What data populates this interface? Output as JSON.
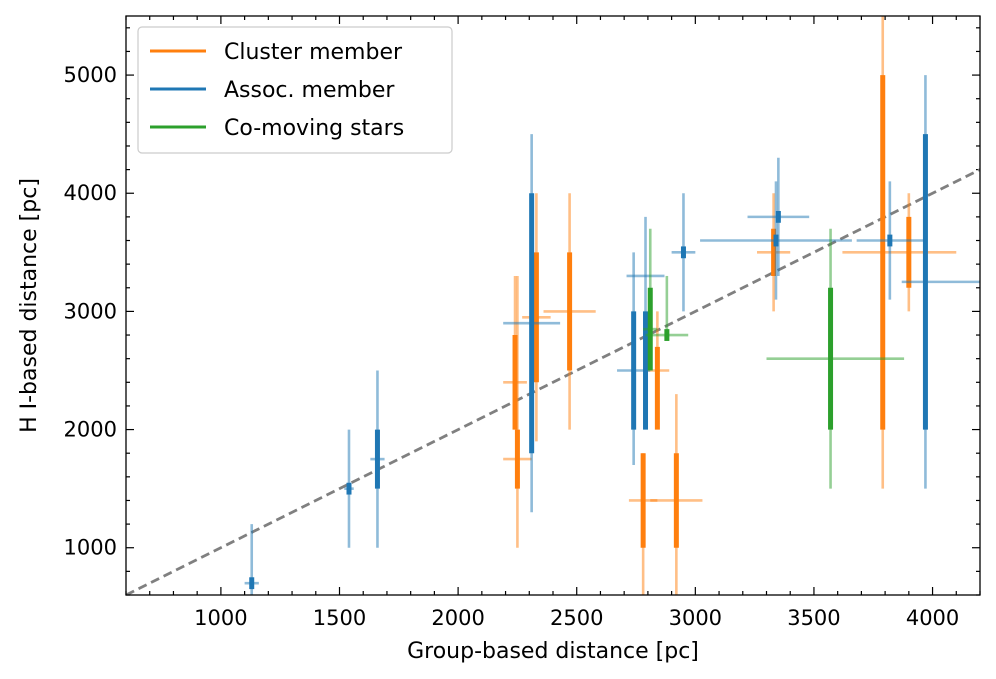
{
  "chart_data": {
    "type": "scatter",
    "xlabel": "Group-based distance [pc]",
    "ylabel": "H I-based distance [pc]",
    "xlim": [
      600,
      4200
    ],
    "ylim": [
      600,
      5500
    ],
    "xticks": [
      1000,
      1500,
      2000,
      2500,
      3000,
      3500,
      4000
    ],
    "yticks": [
      1000,
      2000,
      3000,
      4000,
      5000
    ],
    "x_tick_labels": [
      "1000",
      "1500",
      "2000",
      "2500",
      "3000",
      "3500",
      "4000"
    ],
    "y_tick_labels": [
      "1000",
      "2000",
      "3000",
      "4000",
      "5000"
    ],
    "x_minor_step": 100,
    "y_minor_step": 200,
    "reference_line": {
      "name": "one-to-one",
      "style": "dashed",
      "color": "#808080",
      "points": [
        [
          600,
          600
        ],
        [
          4200,
          4200
        ]
      ]
    },
    "legend": {
      "position": "upper-left",
      "entries": [
        {
          "label": "Cluster member",
          "color": "#ff7f0e"
        },
        {
          "label": "Assoc. member",
          "color": "#1f77b4"
        },
        {
          "label": "Co-moving stars",
          "color": "#2ca02c"
        }
      ]
    },
    "series": [
      {
        "name": "Cluster member",
        "color": "#ff7f0e",
        "points": [
          {
            "x": 2240,
            "y": 2400,
            "xerr": [
              50,
              50
            ],
            "yerr": [
              300,
              900
            ],
            "y_range": [
              2000,
              2800
            ]
          },
          {
            "x": 2250,
            "y": 1750,
            "xerr": [
              60,
              60
            ],
            "yerr": [
              750,
              1550
            ],
            "y_range": [
              1500,
              2000
            ]
          },
          {
            "x": 2330,
            "y": 2950,
            "xerr": [
              60,
              60
            ],
            "yerr": [
              1050,
              1050
            ],
            "y_range": [
              2400,
              3500
            ]
          },
          {
            "x": 2470,
            "y": 3000,
            "xerr": [
              110,
              110
            ],
            "yerr": [
              1000,
              1000
            ],
            "y_range": [
              2500,
              3500
            ]
          },
          {
            "x": 2780,
            "y": 1400,
            "xerr": [
              60,
              60
            ],
            "yerr": [
              800,
              400
            ],
            "y_range": [
              1000,
              1800
            ]
          },
          {
            "x": 2920,
            "y": 1400,
            "xerr": [
              110,
              110
            ],
            "yerr": [
              800,
              900
            ],
            "y_range": [
              1000,
              1800
            ]
          },
          {
            "x": 2840,
            "y": 2500,
            "xerr": [
              50,
              50
            ],
            "yerr": [
              200,
              500
            ],
            "y_range": [
              2000,
              2700
            ]
          },
          {
            "x": 3330,
            "y": 3500,
            "xerr": [
              70,
              70
            ],
            "yerr": [
              500,
              500
            ],
            "y_range": [
              3300,
              3700
            ]
          },
          {
            "x": 3790,
            "y": 3500,
            "xerr": [
              170,
              310
            ],
            "yerr": [
              2000,
              2000
            ],
            "y_range": [
              2000,
              5000
            ]
          },
          {
            "x": 3900,
            "y": 3500,
            "xerr": [
              0,
              0
            ],
            "yerr": [
              500,
              500
            ],
            "y_range": [
              3200,
              3800
            ]
          }
        ]
      },
      {
        "name": "Assoc. member",
        "color": "#1f77b4",
        "points": [
          {
            "x": 1130,
            "y": 700,
            "xerr": [
              30,
              30
            ],
            "yerr": [
              150,
              500
            ],
            "y_range": [
              650,
              750
            ]
          },
          {
            "x": 1540,
            "y": 1500,
            "xerr": [
              20,
              20
            ],
            "yerr": [
              500,
              500
            ],
            "y_range": [
              1450,
              1550
            ]
          },
          {
            "x": 1660,
            "y": 1750,
            "xerr": [
              30,
              30
            ],
            "yerr": [
              750,
              750
            ],
            "y_range": [
              1500,
              2000
            ]
          },
          {
            "x": 2310,
            "y": 2900,
            "xerr": [
              120,
              120
            ],
            "yerr": [
              1600,
              1600
            ],
            "y_range": [
              1800,
              4000
            ]
          },
          {
            "x": 2740,
            "y": 2500,
            "xerr": [
              70,
              70
            ],
            "yerr": [
              800,
              1000
            ],
            "y_range": [
              2000,
              3000
            ]
          },
          {
            "x": 2790,
            "y": 3300,
            "xerr": [
              80,
              80
            ],
            "yerr": [
              800,
              500
            ],
            "y_range": [
              2000,
              3000
            ]
          },
          {
            "x": 2950,
            "y": 3500,
            "xerr": [
              50,
              50
            ],
            "yerr": [
              500,
              500
            ],
            "y_range": [
              3450,
              3550
            ]
          },
          {
            "x": 3350,
            "y": 3800,
            "xerr": [
              130,
              130
            ],
            "yerr": [
              500,
              500
            ],
            "y_range": [
              3750,
              3850
            ]
          },
          {
            "x": 3340,
            "y": 3600,
            "xerr": [
              320,
              320
            ],
            "yerr": [
              500,
              500
            ],
            "y_range": [
              3550,
              3650
            ]
          },
          {
            "x": 3820,
            "y": 3600,
            "xerr": [
              140,
              140
            ],
            "yerr": [
              500,
              500
            ],
            "y_range": [
              3550,
              3650
            ]
          },
          {
            "x": 3970,
            "y": 3250,
            "xerr": [
              100,
              230
            ],
            "yerr": [
              1750,
              1750
            ],
            "y_range": [
              2000,
              4500
            ]
          }
        ]
      },
      {
        "name": "Co-moving stars",
        "color": "#2ca02c",
        "points": [
          {
            "x": 2810,
            "y": 2850,
            "xerr": [
              30,
              30
            ],
            "yerr": [
              350,
              850
            ],
            "y_range": [
              2500,
              3200
            ]
          },
          {
            "x": 2880,
            "y": 2800,
            "xerr": [
              90,
              90
            ],
            "yerr": [
              0,
              500
            ],
            "y_range": [
              2750,
              2850
            ]
          },
          {
            "x": 3570,
            "y": 2600,
            "xerr": [
              270,
              310
            ],
            "yerr": [
              1100,
              1100
            ],
            "y_range": [
              2000,
              3200
            ]
          }
        ]
      }
    ]
  }
}
